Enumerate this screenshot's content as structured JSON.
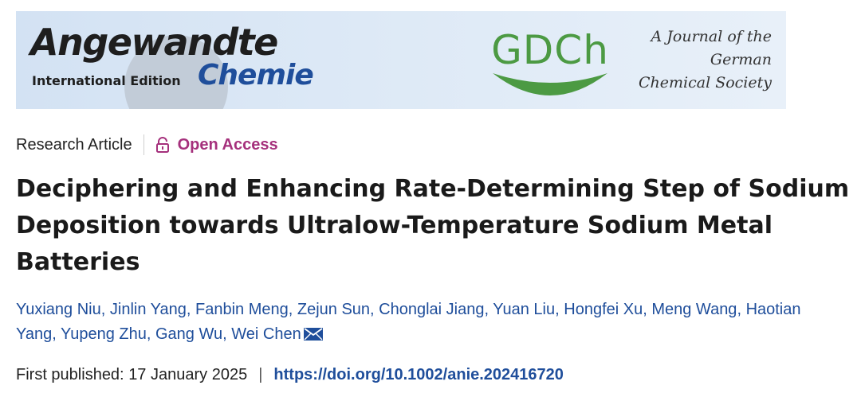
{
  "banner": {
    "journal_name": "Angewandte",
    "edition": "International Edition",
    "subtitle": "Chemie",
    "society_logo_text": "GDCh",
    "society_lines": [
      "A Journal of the",
      "German",
      "Chemical Society"
    ],
    "colors": {
      "brand_blue": "#1f4e9b",
      "gdch_green": "#4c9a43",
      "banner_bg": "#d3e2f3"
    }
  },
  "article": {
    "type": "Research Article",
    "access": "Open Access",
    "access_icon": "lock-open-icon",
    "access_color": "#a5307c",
    "title": "Deciphering and Enhancing Rate-Determining Step of Sodium Deposition towards Ultralow-Temperature Sodium Metal Batteries",
    "authors": [
      "Yuxiang Niu",
      "Jinlin Yang",
      "Fanbin Meng",
      "Zejun Sun",
      "Chonglai Jiang",
      "Yuan Liu",
      "Hongfei Xu",
      "Meng Wang",
      "Haotian Yang",
      "Yupeng Zhu",
      "Gang Wu",
      "Wei Chen"
    ],
    "corresponding_icon": "mail-icon",
    "first_published_label": "First published:",
    "first_published_date": "17 January 2025",
    "separator": "|",
    "doi": "https://doi.org/10.1002/anie.202416720"
  }
}
